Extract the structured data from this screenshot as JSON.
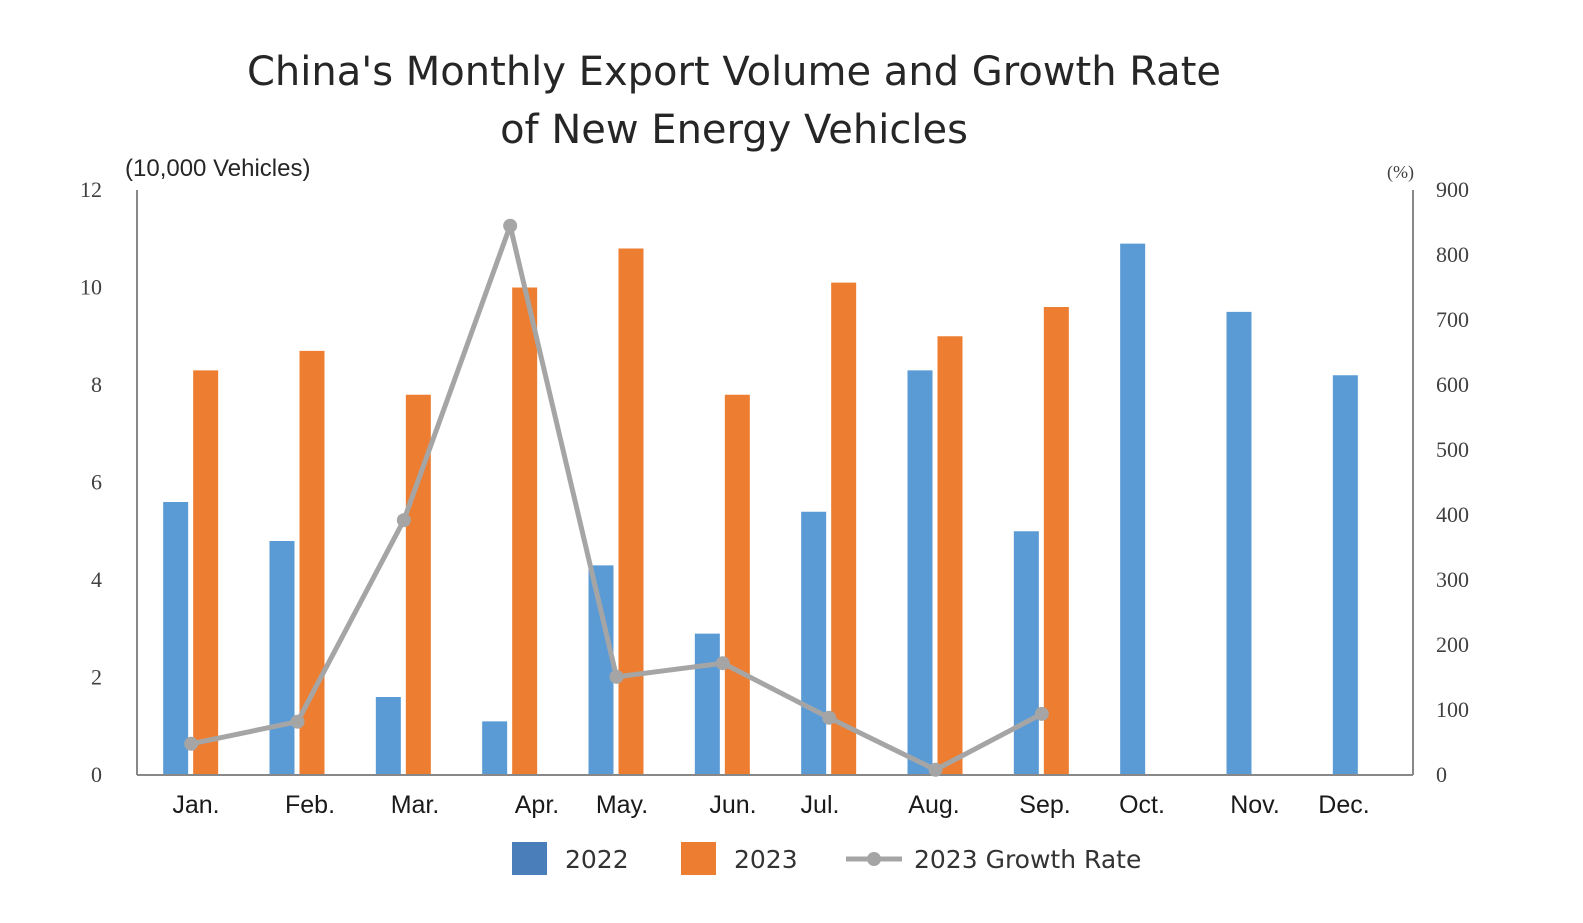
{
  "chart_data": {
    "type": "bar+line",
    "title": [
      "China's Monthly Export Volume and Growth Rate",
      "of New Energy Vehicles"
    ],
    "ylabel": "(10,000 Vehicles)",
    "y2label": "(%)",
    "categories": [
      "Jan.",
      "Feb.",
      "Mar.",
      "Apr.",
      "May.",
      "Jun.",
      "Jul.",
      "Aug.",
      "Sep.",
      "Oct.",
      "Nov.",
      "Dec."
    ],
    "ylim": [
      0,
      12
    ],
    "yticks": [
      "0",
      "2",
      "4",
      "6",
      "8",
      "10",
      "12"
    ],
    "y2lim": [
      0,
      900
    ],
    "y2ticks": [
      "0",
      "100",
      "200",
      "300",
      "400",
      "500",
      "600",
      "700",
      "800",
      "900"
    ],
    "grid": false,
    "legend_position": "bottom",
    "series": [
      {
        "name": "2022",
        "type": "bar",
        "color": "#5b9bd5",
        "legend_color": "#4a7ebb",
        "values": [
          5.6,
          4.8,
          1.6,
          1.1,
          4.3,
          2.9,
          5.4,
          8.3,
          5.0,
          10.9,
          9.5,
          8.2
        ]
      },
      {
        "name": "2023",
        "type": "bar",
        "color": "#ed7d31",
        "values": [
          8.3,
          8.7,
          7.8,
          10.0,
          10.8,
          7.8,
          10.1,
          9.0,
          9.6,
          null,
          null,
          null
        ]
      },
      {
        "name": "2023 Growth Rate",
        "type": "line",
        "axis": "right",
        "color": "#a5a5a5",
        "values": [
          48,
          82,
          392,
          845,
          151,
          172,
          88,
          8,
          94,
          null,
          null,
          null
        ]
      }
    ]
  }
}
